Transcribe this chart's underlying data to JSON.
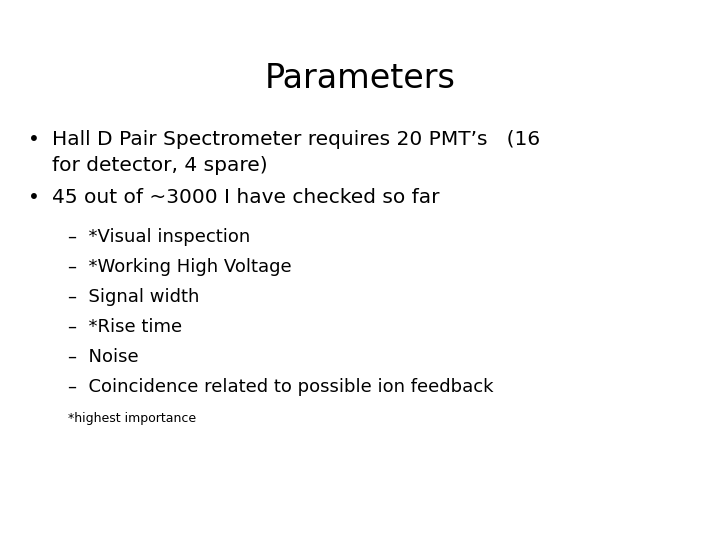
{
  "title": "Parameters",
  "background_color": "#ffffff",
  "text_color": "#000000",
  "title_fontsize": 24,
  "body_fontsize": 14.5,
  "sub_fontsize": 13,
  "footnote_fontsize": 9,
  "title_font": "DejaVu Sans",
  "bullet1_line1": "Hall D Pair Spectrometer requires 20 PMT’s   (16",
  "bullet1_line2": "for detector, 4 spare)",
  "bullet2": "45 out of ~3000 I have checked so far",
  "sub_items": [
    "–  *Visual inspection",
    "–  *Working High Voltage",
    "–  Signal width",
    "–  *Rise time",
    "–  Noise",
    "–  Coincidence related to possible ion feedback"
  ],
  "footnote": "*highest importance"
}
